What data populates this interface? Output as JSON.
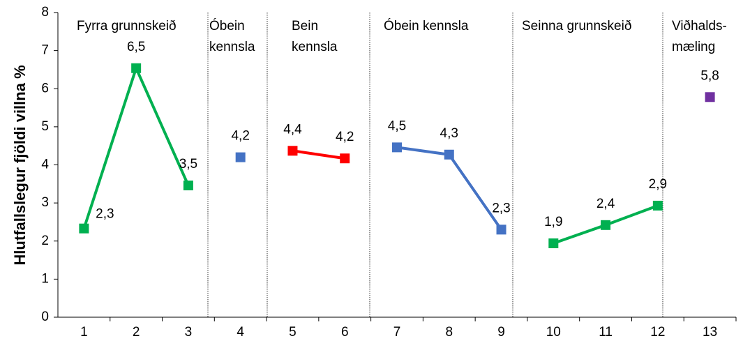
{
  "chart_data": {
    "type": "line",
    "y_label": "Hlutfallslegur fjöldi villna %",
    "categories": [
      "1",
      "2",
      "3",
      "4",
      "5",
      "6",
      "7",
      "8",
      "9",
      "10",
      "11",
      "12",
      "13"
    ],
    "series": [
      {
        "name": "Fyrra grunnskeið",
        "color": "#00b050",
        "values": [
          2.33,
          6.54,
          3.46,
          null,
          null,
          null,
          null,
          null,
          null,
          null,
          null,
          null,
          null
        ],
        "value_labels": [
          "2,3",
          "6,5",
          "3,5",
          null,
          null,
          null,
          null,
          null,
          null,
          null,
          null,
          null,
          null
        ]
      },
      {
        "name": "Óbein\nkennsla",
        "color": "#4472c4",
        "values": [
          null,
          null,
          null,
          4.2,
          null,
          null,
          null,
          null,
          null,
          null,
          null,
          null,
          null
        ],
        "value_labels": [
          null,
          null,
          null,
          "4,2",
          null,
          null,
          null,
          null,
          null,
          null,
          null,
          null,
          null
        ]
      },
      {
        "name": "Bein\nkennsla",
        "color": "#ff0000",
        "values": [
          null,
          null,
          null,
          null,
          4.37,
          4.17,
          null,
          null,
          null,
          null,
          null,
          null,
          null
        ],
        "value_labels": [
          null,
          null,
          null,
          null,
          "4,4",
          "4,2",
          null,
          null,
          null,
          null,
          null,
          null,
          null
        ]
      },
      {
        "name": "Óbein kennsla",
        "color": "#4472c4",
        "values": [
          null,
          null,
          null,
          null,
          null,
          null,
          4.46,
          4.27,
          2.3,
          null,
          null,
          null,
          null
        ],
        "value_labels": [
          null,
          null,
          null,
          null,
          null,
          null,
          "4,5",
          "4,3",
          "2,3",
          null,
          null,
          null,
          null
        ]
      },
      {
        "name": "Seinna grunnskeið",
        "color": "#00b050",
        "values": [
          null,
          null,
          null,
          null,
          null,
          null,
          null,
          null,
          null,
          1.94,
          2.42,
          2.93,
          null
        ],
        "value_labels": [
          null,
          null,
          null,
          null,
          null,
          null,
          null,
          null,
          null,
          "1,9",
          "2,4",
          "2,9",
          null
        ]
      },
      {
        "name": "Viðhalds-\nmæling",
        "color": "#7030a0",
        "values": [
          null,
          null,
          null,
          null,
          null,
          null,
          null,
          null,
          null,
          null,
          null,
          null,
          5.78
        ],
        "value_labels": [
          null,
          null,
          null,
          null,
          null,
          null,
          null,
          null,
          null,
          null,
          null,
          null,
          "5,8"
        ]
      }
    ],
    "ylim": [
      0,
      8
    ],
    "yticks": [
      0,
      1,
      2,
      3,
      4,
      5,
      6,
      7,
      8
    ]
  }
}
